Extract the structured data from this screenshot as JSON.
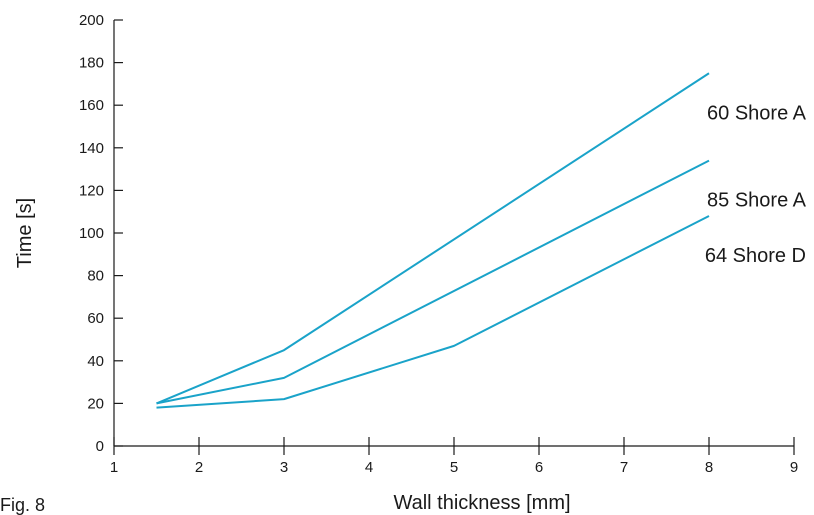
{
  "figure_label": "Fig. 8",
  "chart_data": {
    "type": "line",
    "title": "",
    "xlabel": "Wall thickness [mm]",
    "ylabel": "Time [s]",
    "xlim": [
      1,
      9
    ],
    "ylim": [
      0,
      200
    ],
    "x_ticks": [
      1,
      2,
      3,
      4,
      5,
      6,
      7,
      8,
      9
    ],
    "y_ticks": [
      0,
      20,
      40,
      60,
      80,
      100,
      120,
      140,
      160,
      180,
      200
    ],
    "grid": false,
    "line_color": "#1aa3c9",
    "series": [
      {
        "name": "60 Shore A",
        "x": [
          1.5,
          3,
          8
        ],
        "y": [
          20,
          45,
          175
        ]
      },
      {
        "name": "85 Shore A",
        "x": [
          1.5,
          3,
          8
        ],
        "y": [
          20,
          32,
          134
        ]
      },
      {
        "name": "64 Shore D",
        "x": [
          1.5,
          3,
          5,
          8
        ],
        "y": [
          18,
          22,
          47,
          108
        ]
      }
    ]
  }
}
